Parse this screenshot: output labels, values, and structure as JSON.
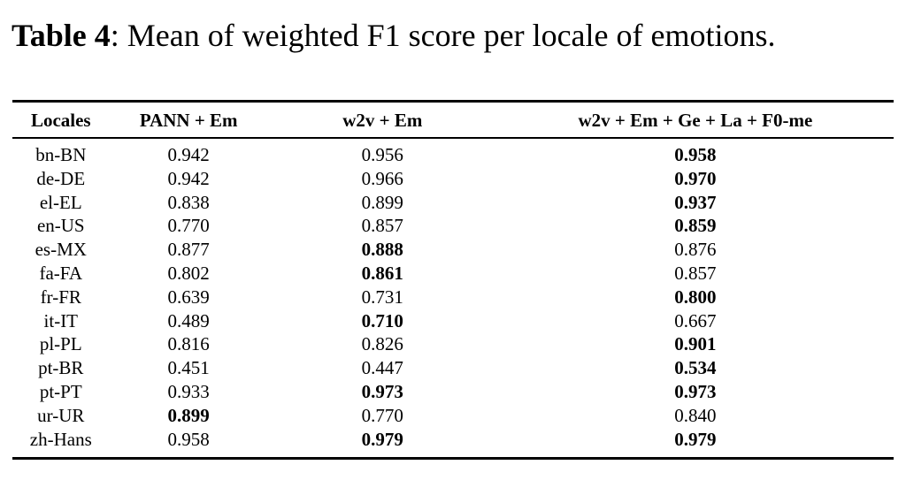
{
  "caption": {
    "label": "Table 4",
    "text": ": Mean of weighted F1 score per locale of emotions."
  },
  "table": {
    "columns": [
      "Locales",
      "PANN + Em",
      "w2v + Em",
      "w2v + Em + Ge + La + F0-me"
    ],
    "rows": [
      {
        "locale": "bn-BN",
        "values": [
          "0.942",
          "0.956",
          "0.958"
        ],
        "bold": [
          false,
          false,
          true
        ]
      },
      {
        "locale": "de-DE",
        "values": [
          "0.942",
          "0.966",
          "0.970"
        ],
        "bold": [
          false,
          false,
          true
        ]
      },
      {
        "locale": "el-EL",
        "values": [
          "0.838",
          "0.899",
          "0.937"
        ],
        "bold": [
          false,
          false,
          true
        ]
      },
      {
        "locale": "en-US",
        "values": [
          "0.770",
          "0.857",
          "0.859"
        ],
        "bold": [
          false,
          false,
          true
        ]
      },
      {
        "locale": "es-MX",
        "values": [
          "0.877",
          "0.888",
          "0.876"
        ],
        "bold": [
          false,
          true,
          false
        ]
      },
      {
        "locale": "fa-FA",
        "values": [
          "0.802",
          "0.861",
          "0.857"
        ],
        "bold": [
          false,
          true,
          false
        ]
      },
      {
        "locale": "fr-FR",
        "values": [
          "0.639",
          "0.731",
          "0.800"
        ],
        "bold": [
          false,
          false,
          true
        ]
      },
      {
        "locale": "it-IT",
        "values": [
          "0.489",
          "0.710",
          "0.667"
        ],
        "bold": [
          false,
          true,
          false
        ]
      },
      {
        "locale": "pl-PL",
        "values": [
          "0.816",
          "0.826",
          "0.901"
        ],
        "bold": [
          false,
          false,
          true
        ]
      },
      {
        "locale": "pt-BR",
        "values": [
          "0.451",
          "0.447",
          "0.534"
        ],
        "bold": [
          false,
          false,
          true
        ]
      },
      {
        "locale": "pt-PT",
        "values": [
          "0.933",
          "0.973",
          "0.973"
        ],
        "bold": [
          false,
          true,
          true
        ]
      },
      {
        "locale": "ur-UR",
        "values": [
          "0.899",
          "0.770",
          "0.840"
        ],
        "bold": [
          true,
          false,
          false
        ]
      },
      {
        "locale": "zh-Hans",
        "values": [
          "0.958",
          "0.979",
          "0.979"
        ],
        "bold": [
          false,
          true,
          true
        ]
      }
    ]
  },
  "chart_data": {
    "type": "table",
    "title": "Table 4: Mean of weighted F1 score per locale of emotions.",
    "categories": [
      "bn-BN",
      "de-DE",
      "el-EL",
      "en-US",
      "es-MX",
      "fa-FA",
      "fr-FR",
      "it-IT",
      "pl-PL",
      "pt-BR",
      "pt-PT",
      "ur-UR",
      "zh-Hans"
    ],
    "series": [
      {
        "name": "PANN + Em",
        "values": [
          0.942,
          0.942,
          0.838,
          0.77,
          0.877,
          0.802,
          0.639,
          0.489,
          0.816,
          0.451,
          0.933,
          0.899,
          0.958
        ]
      },
      {
        "name": "w2v + Em",
        "values": [
          0.956,
          0.966,
          0.899,
          0.857,
          0.888,
          0.861,
          0.731,
          0.71,
          0.826,
          0.447,
          0.973,
          0.77,
          0.979
        ]
      },
      {
        "name": "w2v + Em + Ge + La + F0-me",
        "values": [
          0.958,
          0.97,
          0.937,
          0.859,
          0.876,
          0.857,
          0.8,
          0.667,
          0.901,
          0.534,
          0.973,
          0.84,
          0.979
        ]
      }
    ]
  },
  "colors": {
    "text": "#000000",
    "background": "#ffffff",
    "rule": "#000000"
  }
}
